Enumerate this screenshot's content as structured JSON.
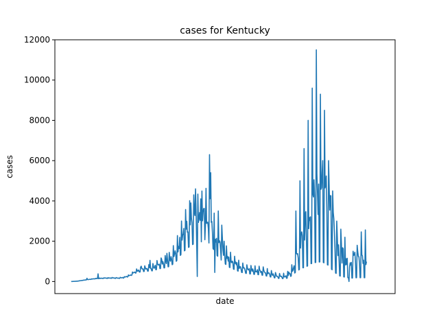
{
  "chart_data": {
    "type": "line",
    "title": "cases for Kentucky",
    "xlabel": "date",
    "ylabel": "cases",
    "ylim": [
      -600,
      12000
    ],
    "xlim": [
      -28,
      555
    ],
    "yticks": [
      0,
      2000,
      4000,
      6000,
      8000,
      10000,
      12000
    ],
    "x_tick_labels_shown": false,
    "grid": false,
    "series_color": "#1f77b4",
    "series": [
      {
        "x_start": 0,
        "x_step": 1,
        "anchors": [
          [
            0,
            0
          ],
          [
            10,
            15
          ],
          [
            20,
            60
          ],
          [
            30,
            100
          ],
          [
            40,
            140
          ],
          [
            50,
            160
          ],
          [
            60,
            170
          ],
          [
            70,
            180
          ],
          [
            80,
            170
          ],
          [
            90,
            200
          ],
          [
            100,
            300
          ],
          [
            110,
            500
          ],
          [
            120,
            600
          ],
          [
            130,
            650
          ],
          [
            140,
            700
          ],
          [
            150,
            850
          ],
          [
            160,
            950
          ],
          [
            170,
            1100
          ],
          [
            180,
            1500
          ],
          [
            190,
            2200
          ],
          [
            200,
            2700
          ],
          [
            210,
            3000
          ],
          [
            220,
            3050
          ],
          [
            230,
            3300
          ],
          [
            240,
            2800
          ],
          [
            250,
            2000
          ],
          [
            260,
            1500
          ],
          [
            270,
            1100
          ],
          [
            280,
            900
          ],
          [
            290,
            700
          ],
          [
            300,
            600
          ],
          [
            310,
            560
          ],
          [
            320,
            540
          ],
          [
            330,
            500
          ],
          [
            340,
            400
          ],
          [
            350,
            300
          ],
          [
            360,
            250
          ],
          [
            370,
            300
          ],
          [
            380,
            600
          ],
          [
            390,
            1500
          ],
          [
            400,
            2800
          ],
          [
            410,
            3800
          ],
          [
            420,
            4300
          ],
          [
            430,
            4600
          ],
          [
            440,
            4000
          ],
          [
            450,
            2500
          ],
          [
            460,
            1500
          ],
          [
            470,
            1200
          ],
          [
            480,
            1000
          ],
          [
            490,
            1200
          ],
          [
            506,
            1300
          ]
        ],
        "weekly_amplitude": [
          [
            0,
            0.03
          ],
          [
            100,
            0.15
          ],
          [
            200,
            0.4
          ],
          [
            300,
            0.35
          ],
          [
            380,
            0.5
          ],
          [
            400,
            0.8
          ],
          [
            506,
            0.9
          ]
        ],
        "spikes": [
          [
            27,
            160
          ],
          [
            46,
            380
          ],
          [
            120,
            760
          ],
          [
            135,
            1050
          ],
          [
            155,
            1100
          ],
          [
            164,
            1400
          ],
          [
            197,
            2600
          ],
          [
            205,
            3900
          ],
          [
            213,
            4600
          ],
          [
            216,
            250
          ],
          [
            222,
            4100
          ],
          [
            230,
            2800
          ],
          [
            237,
            6300
          ],
          [
            239,
            5400
          ],
          [
            246,
            450
          ],
          [
            252,
            3500
          ],
          [
            258,
            2800
          ],
          [
            262,
            2000
          ],
          [
            385,
            3500
          ],
          [
            392,
            5000
          ],
          [
            399,
            6600
          ],
          [
            406,
            8000
          ],
          [
            413,
            9600
          ],
          [
            420,
            11500
          ],
          [
            427,
            9300
          ],
          [
            434,
            8500
          ],
          [
            441,
            6000
          ],
          [
            448,
            4500
          ],
          [
            455,
            3000
          ],
          [
            462,
            2600
          ],
          [
            469,
            2200
          ],
          [
            476,
            0
          ],
          [
            483,
            1500
          ],
          [
            490,
            1800
          ]
        ]
      }
    ]
  }
}
